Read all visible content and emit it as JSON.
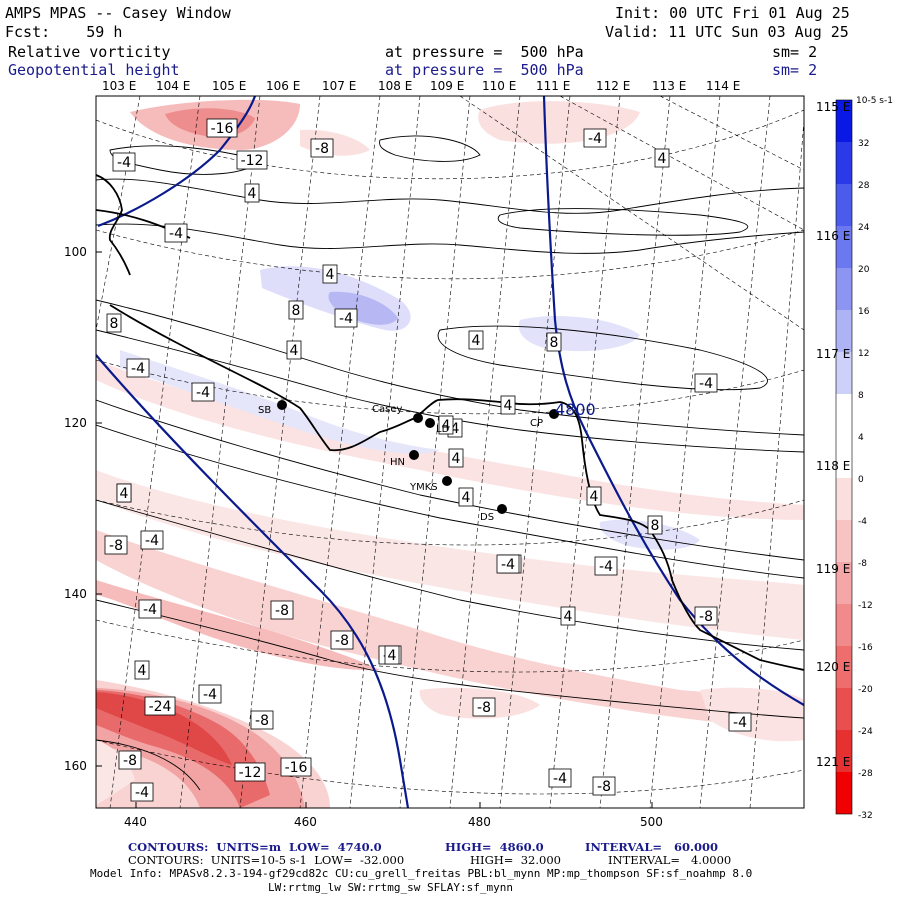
{
  "header": {
    "title": "AMPS MPAS -- Casey Window",
    "init": "Init: 00 UTC Fri 01 Aug 25",
    "forecast": "Fcst:    59 h",
    "valid": "Valid: 11 UTC Sun 03 Aug 25",
    "field1": {
      "name": "Relative vorticity",
      "level": "at pressure =  500 hPa",
      "smooth": "sm= 2"
    },
    "field2": {
      "name": "Geopotential height",
      "level": "at pressure =  500 hPa",
      "smooth": "sm= 2"
    }
  },
  "axes": {
    "top_lon": [
      "103 E",
      "104 E",
      "105 E",
      "106 E",
      "107 E",
      "108 E",
      "109 E",
      "110 E",
      "111 E",
      "112 E",
      "113 E",
      "114 E"
    ],
    "right_lon": [
      "115 E",
      "116 E",
      "117 E",
      "118 E",
      "119 E",
      "120 E",
      "121 E"
    ],
    "left": [
      "100",
      "120",
      "140",
      "160"
    ],
    "bottom": [
      "440",
      "460",
      "480",
      "500"
    ]
  },
  "colorbar": {
    "unit": "10-5 s-1",
    "ticks": [
      "32",
      "28",
      "24",
      "20",
      "16",
      "12",
      "8",
      "4",
      "0",
      "-4",
      "-8",
      "-12",
      "-16",
      "-20",
      "-24",
      "-28",
      "-32"
    ]
  },
  "stations": [
    {
      "name": "SB"
    },
    {
      "name": "Casey"
    },
    {
      "name": "LD"
    },
    {
      "name": "HN"
    },
    {
      "name": "YMKS"
    },
    {
      "name": "DS"
    },
    {
      "name": "CP"
    }
  ],
  "height_label": "4800",
  "contour_labels": [
    "-16",
    "-12",
    "-8",
    "-4",
    "4",
    "-4",
    "4",
    "-4",
    "4",
    "8",
    "-4",
    "4",
    "8",
    "4",
    "8",
    "-4",
    "-4",
    "-4",
    "4",
    "4",
    "4",
    "4",
    "4",
    "4",
    "8",
    "4",
    "-8",
    "-4",
    "-4",
    "-4",
    "-4",
    "-8",
    "-8",
    "-4",
    "-24",
    "-4",
    "-8",
    "-8",
    "-12",
    "-16",
    "-8",
    "-4",
    "-4",
    "-8",
    "-4",
    "4",
    "4",
    "-8",
    "4",
    "-4",
    "4"
  ],
  "footer": {
    "contours1_a": "CONTOURS:  UNITS=m  LOW=  4740.0",
    "contours1_b": "HIGH=  4860.0",
    "contours1_c": "INTERVAL=   60.000",
    "contours2_a": "CONTOURS:  UNITS=10-5 s-1  LOW=  -32.000",
    "contours2_b": "HIGH=  32.000",
    "contours2_c": "INTERVAL=   4.0000",
    "model_info": "Model Info: MPASv8.2.3-194-gf29cd82c CU:cu_grell_freitas PBL:bl_mynn MP:mp_thompson SF:sf_noahmp 8.0",
    "model_info2": "LW:rrtmg_lw SW:rrtmg_sw SFLAY:sf_mynn"
  },
  "colors": {
    "blue_text": "#1a1a8c",
    "height_contour": "#0a1a8c"
  }
}
